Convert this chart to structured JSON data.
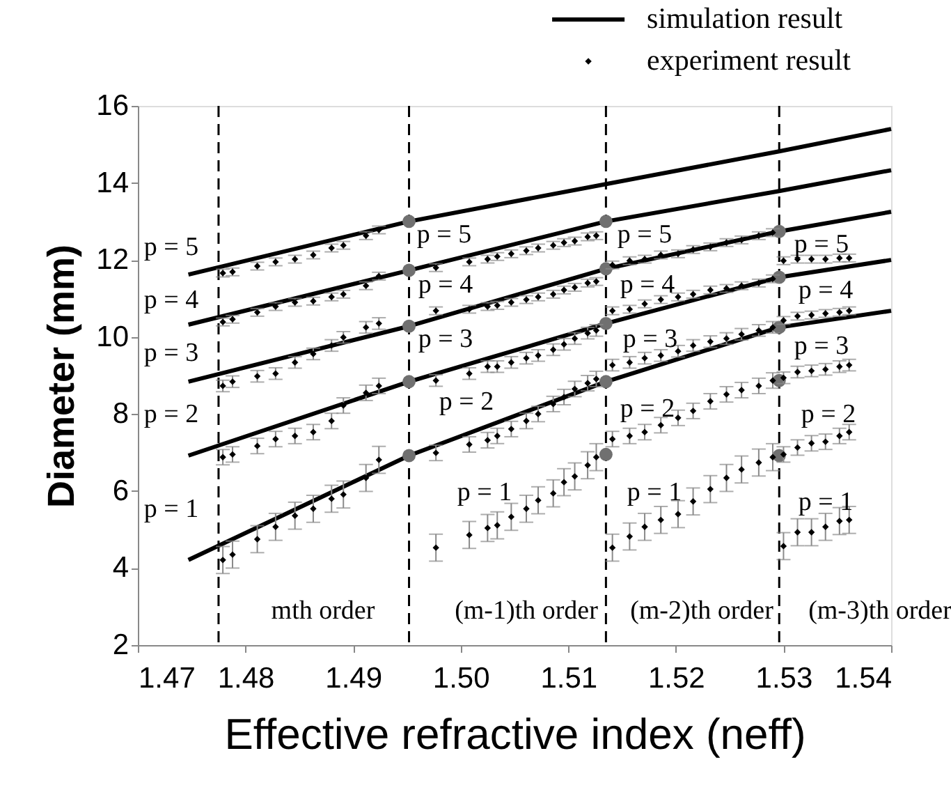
{
  "chart_data": {
    "type": "scatter",
    "xlabel": "Effective refractive index (neff)",
    "ylabel": "Diameter (mm)",
    "xlim": [
      1.47,
      1.54
    ],
    "ylim": [
      2,
      16
    ],
    "xticks": [
      1.47,
      1.48,
      1.49,
      {
        "value": 1.5,
        "label": "1.50"
      },
      1.51,
      1.52,
      1.53,
      1.54
    ],
    "yticks": [
      2,
      4,
      6,
      8,
      10,
      12,
      14,
      16
    ],
    "grid": false,
    "legend": "top right",
    "series": [
      {
        "name": "simulation result",
        "type": "line",
        "color": "#000000",
        "x": [
          1.4747,
          1.4952,
          1.5135,
          1.5296,
          1.54
        ],
        "values": [
          11.62,
          13.0,
          13.97,
          14.82,
          15.4
        ]
      },
      {
        "type": "line",
        "color": "#000000",
        "x": [
          1.4747,
          1.4952,
          1.5135,
          1.5296,
          1.54
        ],
        "values": [
          10.32,
          11.73,
          13.0,
          13.79,
          14.33
        ]
      },
      {
        "type": "line",
        "color": "#000000",
        "x": [
          1.4747,
          1.4952,
          1.5135,
          1.5296,
          1.54
        ],
        "values": [
          8.84,
          10.28,
          11.77,
          12.74,
          13.25
        ]
      },
      {
        "type": "line",
        "color": "#000000",
        "x": [
          1.4747,
          1.4952,
          1.5135,
          1.5296,
          1.54
        ],
        "values": [
          6.92,
          8.84,
          10.35,
          11.55,
          12.0
        ]
      },
      {
        "type": "line",
        "color": "#000000",
        "x": [
          1.4747,
          1.4952,
          1.5135,
          1.5296,
          1.54
        ],
        "values": [
          4.21,
          6.92,
          8.84,
          10.25,
          10.68
        ]
      },
      {
        "name": "experiment result",
        "color": "#000000",
        "marker": "diamond",
        "x": [
          1.4779,
          1.4788,
          1.4811,
          1.4828,
          1.4846,
          1.4863,
          1.488,
          1.4891,
          1.4912,
          1.4924,
          1.4977,
          1.5008,
          1.5025,
          1.5034,
          1.5047,
          1.5061,
          1.5072,
          1.5086,
          1.5096,
          1.5106,
          1.5118,
          1.5126,
          1.5141,
          1.5157,
          1.5171,
          1.5186,
          1.5202,
          1.5216,
          1.5232,
          1.5247,
          1.5261,
          1.5277,
          1.529,
          1.53,
          1.5313,
          1.5326,
          1.5339,
          1.5352,
          1.5361
        ],
        "values": [
          4.21,
          4.35,
          4.75,
          5.07,
          5.36,
          5.54,
          5.8,
          5.91,
          6.34,
          6.81,
          4.53,
          4.86,
          5.04,
          5.11,
          5.33,
          5.54,
          5.76,
          5.94,
          6.23,
          6.38,
          6.67,
          6.88,
          4.53,
          4.82,
          5.07,
          5.25,
          5.4,
          5.73,
          6.05,
          6.34,
          6.56,
          6.74,
          6.88,
          4.57,
          4.93,
          4.93,
          5.07,
          5.22,
          5.25
        ],
        "errors": [
          0.35,
          0.35,
          0.35,
          0.35,
          0.35,
          0.35,
          0.35,
          0.35,
          0.35,
          0.35,
          0.35,
          0.35,
          0.35,
          0.35,
          0.35,
          0.35,
          0.35,
          0.35,
          0.35,
          0.35,
          0.35,
          0.35,
          0.35,
          0.35,
          0.35,
          0.35,
          0.35,
          0.35,
          0.35,
          0.35,
          0.35,
          0.35,
          0.35,
          0.35,
          0.35,
          0.35,
          0.35,
          0.35,
          0.35
        ]
      },
      {
        "color": "#000000",
        "marker": "diamond",
        "x": [
          1.4779,
          1.4788,
          1.4811,
          1.4828,
          1.4846,
          1.4863,
          1.488,
          1.4891,
          1.4912,
          1.4924,
          1.4977,
          1.5008,
          1.5025,
          1.5034,
          1.5047,
          1.5061,
          1.5072,
          1.5086,
          1.5096,
          1.5106,
          1.5118,
          1.5126,
          1.5141,
          1.5157,
          1.5171,
          1.5186,
          1.5202,
          1.5216,
          1.5232,
          1.5247,
          1.5261,
          1.5277,
          1.529,
          1.53,
          1.5313,
          1.5326,
          1.5339,
          1.5352,
          1.5361
        ],
        "values": [
          6.88,
          6.95,
          7.17,
          7.35,
          7.43,
          7.53,
          7.82,
          8.22,
          8.55,
          8.73,
          6.99,
          7.21,
          7.32,
          7.43,
          7.61,
          7.82,
          8.0,
          8.26,
          8.44,
          8.65,
          8.8,
          8.91,
          7.35,
          7.43,
          7.53,
          7.71,
          7.9,
          8.08,
          8.33,
          8.51,
          8.62,
          8.73,
          8.87,
          6.95,
          7.13,
          7.24,
          7.28,
          7.43,
          7.53
        ],
        "errors": [
          0.2,
          0.2,
          0.2,
          0.2,
          0.2,
          0.2,
          0.2,
          0.2,
          0.2,
          0.2,
          0.2,
          0.2,
          0.2,
          0.2,
          0.2,
          0.2,
          0.2,
          0.2,
          0.2,
          0.2,
          0.2,
          0.2,
          0.2,
          0.2,
          0.2,
          0.2,
          0.2,
          0.2,
          0.2,
          0.2,
          0.2,
          0.2,
          0.2,
          0.2,
          0.2,
          0.2,
          0.2,
          0.2,
          0.2
        ]
      },
      {
        "color": "#000000",
        "marker": "diamond",
        "x": [
          1.4779,
          1.4788,
          1.4811,
          1.4828,
          1.4846,
          1.4863,
          1.488,
          1.4891,
          1.4912,
          1.4924,
          1.4977,
          1.5008,
          1.5025,
          1.5034,
          1.5047,
          1.5061,
          1.5072,
          1.5086,
          1.5096,
          1.5106,
          1.5118,
          1.5126,
          1.5141,
          1.5157,
          1.5171,
          1.5186,
          1.5202,
          1.5216,
          1.5232,
          1.5247,
          1.5261,
          1.5277,
          1.529,
          1.53,
          1.5313,
          1.5326,
          1.5339,
          1.5352,
          1.5361
        ],
        "values": [
          8.73,
          8.84,
          8.98,
          9.05,
          9.34,
          9.56,
          9.78,
          9.99,
          10.25,
          10.35,
          8.87,
          9.05,
          9.23,
          9.23,
          9.34,
          9.45,
          9.52,
          9.67,
          9.81,
          9.96,
          10.1,
          10.17,
          9.27,
          9.34,
          9.45,
          9.52,
          9.63,
          9.78,
          9.88,
          9.96,
          10.07,
          10.17,
          10.25,
          8.94,
          9.09,
          9.12,
          9.16,
          9.23,
          9.27
        ],
        "errors": [
          0.15,
          0.15,
          0.15,
          0.15,
          0.15,
          0.15,
          0.15,
          0.15,
          0.15,
          0.15,
          0.15,
          0.15,
          0.15,
          0.15,
          0.15,
          0.15,
          0.15,
          0.15,
          0.15,
          0.15,
          0.15,
          0.15,
          0.15,
          0.15,
          0.15,
          0.15,
          0.15,
          0.15,
          0.15,
          0.15,
          0.15,
          0.15,
          0.15,
          0.15,
          0.15,
          0.15,
          0.15,
          0.15,
          0.15
        ]
      },
      {
        "color": "#000000",
        "marker": "diamond",
        "x": [
          1.4779,
          1.4788,
          1.4811,
          1.4828,
          1.4846,
          1.4863,
          1.488,
          1.4891,
          1.4912,
          1.4924,
          1.4977,
          1.5008,
          1.5025,
          1.5034,
          1.5047,
          1.5061,
          1.5072,
          1.5086,
          1.5096,
          1.5106,
          1.5118,
          1.5126,
          1.5141,
          1.5157,
          1.5171,
          1.5186,
          1.5202,
          1.5216,
          1.5232,
          1.5247,
          1.5261,
          1.5277,
          1.529,
          1.53,
          1.5313,
          1.5326,
          1.5339,
          1.5352,
          1.5361
        ],
        "values": [
          10.39,
          10.46,
          10.64,
          10.79,
          10.9,
          10.93,
          11.04,
          11.11,
          11.33,
          11.58,
          10.68,
          10.72,
          10.79,
          10.82,
          10.9,
          10.97,
          11.04,
          11.11,
          11.22,
          11.29,
          11.4,
          11.44,
          10.68,
          10.72,
          10.86,
          10.97,
          11.04,
          11.11,
          11.22,
          11.26,
          11.33,
          11.4,
          11.51,
          10.43,
          10.54,
          10.57,
          10.61,
          10.64,
          10.68
        ],
        "errors": [
          0.1,
          0.1,
          0.1,
          0.1,
          0.1,
          0.1,
          0.1,
          0.1,
          0.1,
          0.1,
          0.1,
          0.1,
          0.1,
          0.1,
          0.1,
          0.1,
          0.1,
          0.1,
          0.1,
          0.1,
          0.1,
          0.1,
          0.1,
          0.1,
          0.1,
          0.1,
          0.1,
          0.1,
          0.1,
          0.1,
          0.1,
          0.1,
          0.1,
          0.1,
          0.1,
          0.1,
          0.1,
          0.1,
          0.1
        ]
      },
      {
        "color": "#000000",
        "marker": "diamond",
        "x": [
          1.4779,
          1.4788,
          1.4811,
          1.4828,
          1.4846,
          1.4863,
          1.488,
          1.4891,
          1.4912,
          1.4924,
          1.4977,
          1.5008,
          1.5025,
          1.5034,
          1.5047,
          1.5061,
          1.5072,
          1.5086,
          1.5096,
          1.5106,
          1.5118,
          1.5126,
          1.5141,
          1.5157,
          1.5171,
          1.5186,
          1.5202,
          1.5216,
          1.5232,
          1.5247,
          1.5261,
          1.5277,
          1.529,
          1.53,
          1.5313,
          1.5326,
          1.5339,
          1.5352,
          1.5361
        ],
        "values": [
          11.66,
          11.69,
          11.84,
          11.95,
          12.02,
          12.13,
          12.31,
          12.38,
          12.63,
          12.78,
          11.8,
          11.95,
          12.02,
          12.09,
          12.16,
          12.24,
          12.31,
          12.38,
          12.45,
          12.49,
          12.6,
          12.63,
          11.87,
          11.98,
          12.02,
          12.13,
          12.16,
          12.27,
          12.34,
          12.45,
          12.52,
          12.63,
          12.71,
          11.98,
          12.02,
          12.02,
          12.02,
          12.05,
          12.05
        ],
        "errors": [
          0.1,
          0.1,
          0.1,
          0.1,
          0.1,
          0.1,
          0.1,
          0.1,
          0.1,
          0.1,
          0.1,
          0.1,
          0.1,
          0.1,
          0.1,
          0.1,
          0.1,
          0.1,
          0.1,
          0.1,
          0.1,
          0.1,
          0.1,
          0.1,
          0.1,
          0.1,
          0.1,
          0.1,
          0.1,
          0.1,
          0.1,
          0.1,
          0.1,
          0.1,
          0.1,
          0.1,
          0.1,
          0.1,
          0.1
        ]
      },
      {
        "color": "#707070",
        "marker": "circle",
        "x": [
          1.4952,
          1.4952,
          1.4952,
          1.4952,
          1.4952,
          1.5135,
          1.5135,
          1.5135,
          1.5135,
          1.5135,
          1.5296,
          1.5296,
          1.5296,
          1.5296,
          1.5296
        ],
        "values": [
          13.0,
          11.73,
          10.28,
          8.84,
          6.92,
          13.0,
          11.77,
          10.35,
          8.84,
          6.95,
          12.74,
          11.55,
          10.25,
          8.87,
          6.92
        ]
      }
    ],
    "ref_lines": [
      {
        "axis": "x",
        "value": 1.4775,
        "color": "#000000",
        "line_style": "dashed"
      },
      {
        "axis": "x",
        "value": 1.4952,
        "color": "#000000",
        "line_style": "dashed"
      },
      {
        "axis": "x",
        "value": 1.5135,
        "color": "#000000",
        "line_style": "dashed"
      },
      {
        "axis": "x",
        "value": 1.5296,
        "color": "#000000",
        "line_style": "dashed"
      }
    ],
    "annotations": [
      "mth order",
      "(m-1)th order",
      "(m-2)th order",
      "(m-3)th order",
      "p = 5",
      "p = 4",
      "p = 3",
      "p = 2",
      "p = 1",
      "p = 5",
      "p = 4",
      "p = 3",
      "p = 2",
      "p = 1",
      "p = 5",
      "p = 4",
      "p = 3",
      "p = 2",
      "p = 1",
      "p = 5",
      "p = 4",
      "p = 3",
      "p = 2",
      "p = 1"
    ]
  }
}
